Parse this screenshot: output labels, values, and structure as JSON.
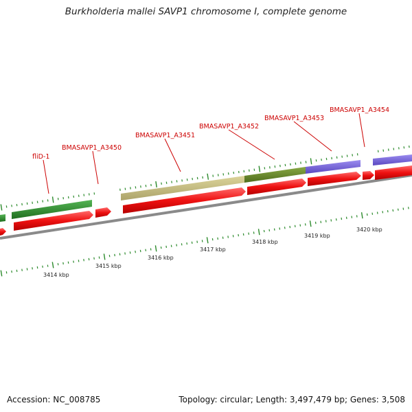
{
  "title": "Burkholderia mallei SAVP1 chromosome I, complete genome",
  "footer": {
    "accession": "Accession: NC_008785",
    "summary": "Topology: circular; Length: 3,497,479 bp; Genes: 3,508"
  },
  "colors": {
    "backbone": "#8a8a8a",
    "tick": "#2b8a2b",
    "cds": "#ee1111",
    "gene_label": "#cc0000"
  },
  "kbp_ticks": [
    "3414 kbp",
    "3415 kbp",
    "3416 kbp",
    "3417 kbp",
    "3418 kbp",
    "3419 kbp",
    "3420 kbp"
  ],
  "gene_labels": [
    "fliD-1",
    "BMASAVP1_A3450",
    "BMASAVP1_A3451",
    "BMASAVP1_A3452",
    "BMASAVP1_A3453",
    "BMASAVP1_A3454"
  ],
  "feature_colors": [
    "#2e8b2e",
    "#c8bf80",
    "#6b8c28",
    "#7b68d8"
  ]
}
